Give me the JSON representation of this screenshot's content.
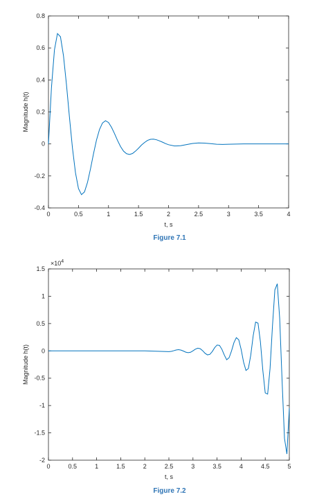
{
  "chart_data": [
    {
      "type": "line",
      "caption": "Figure 7.1",
      "xlabel": "t, s",
      "ylabel": "Magnitude h(t)",
      "color": "#0072bd",
      "x": [
        0,
        0.05,
        0.1,
        0.15,
        0.2,
        0.25,
        0.3,
        0.35,
        0.4,
        0.45,
        0.5,
        0.55,
        0.6,
        0.65,
        0.7,
        0.75,
        0.8,
        0.85,
        0.9,
        0.95,
        1,
        1.05,
        1.1,
        1.15,
        1.2,
        1.25,
        1.3,
        1.35,
        1.4,
        1.45,
        1.5,
        1.55,
        1.6,
        1.65,
        1.7,
        1.75,
        1.8,
        1.85,
        1.9,
        1.95,
        2,
        2.1,
        2.2,
        2.3,
        2.4,
        2.5,
        2.6,
        2.7,
        2.8,
        2.9,
        3,
        3.25,
        3.5,
        3.75,
        4
      ],
      "values": [
        0,
        0.352,
        0.588,
        0.69,
        0.67,
        0.552,
        0.371,
        0.166,
        -0.026,
        -0.18,
        -0.279,
        -0.317,
        -0.3,
        -0.241,
        -0.156,
        -0.062,
        0.024,
        0.09,
        0.131,
        0.145,
        0.134,
        0.104,
        0.065,
        0.022,
        -0.016,
        -0.045,
        -0.061,
        -0.066,
        -0.06,
        -0.045,
        -0.027,
        -0.007,
        0.009,
        0.022,
        0.029,
        0.03,
        0.026,
        0.019,
        0.011,
        0.002,
        -0.005,
        -0.013,
        -0.011,
        -0.004,
        0.003,
        0.006,
        0.005,
        0.002,
        -0.002,
        -0.003,
        -0.002,
        0,
        0,
        0,
        0
      ],
      "xlim": [
        0,
        4
      ],
      "xticks": [
        0,
        0.5,
        1,
        1.5,
        2,
        2.5,
        3,
        3.5,
        4
      ],
      "ylim": [
        -0.4,
        0.8
      ],
      "yticks": [
        -0.4,
        -0.2,
        0,
        0.2,
        0.4,
        0.6,
        0.8
      ],
      "grid": false
    },
    {
      "type": "line",
      "caption": "Figure 7.2",
      "xlabel": "t, s",
      "ylabel": "Magnitude h(t)",
      "y_multiplier": {
        "base": "×10",
        "power": "4"
      },
      "color": "#0072bd",
      "x": [
        0,
        1,
        2,
        2.5,
        2.55,
        2.6,
        2.65,
        2.7,
        2.75,
        2.8,
        2.85,
        2.9,
        2.95,
        3,
        3.05,
        3.1,
        3.15,
        3.2,
        3.25,
        3.3,
        3.35,
        3.4,
        3.45,
        3.5,
        3.55,
        3.6,
        3.65,
        3.7,
        3.75,
        3.8,
        3.85,
        3.9,
        3.95,
        4,
        4.05,
        4.1,
        4.15,
        4.2,
        4.25,
        4.3,
        4.35,
        4.4,
        4.45,
        4.5,
        4.55,
        4.6,
        4.65,
        4.7,
        4.75,
        4.8,
        4.85,
        4.9,
        4.95,
        5
      ],
      "values": [
        0,
        0,
        0,
        -0.014,
        -0.009,
        0.003,
        0.016,
        0.022,
        0.015,
        -0.003,
        -0.023,
        -0.033,
        -0.025,
        0.001,
        0.031,
        0.049,
        0.04,
        0.004,
        -0.043,
        -0.073,
        -0.064,
        -0.013,
        0.058,
        0.107,
        0.101,
        0.03,
        -0.075,
        -0.162,
        -0.125,
        -0.002,
        0.15,
        0.242,
        0.203,
        0.027,
        -0.204,
        -0.358,
        -0.323,
        -0.076,
        0.277,
        0.527,
        0.508,
        0.166,
        -0.355,
        -0.769,
        -0.791,
        -0.324,
        0.451,
        1.116,
        1.228,
        0.595,
        -0.55,
        -1.603,
        -1.887,
        -1.047
      ],
      "xlim": [
        0,
        5
      ],
      "xticks": [
        0,
        0.5,
        1,
        1.5,
        2,
        2.5,
        3,
        3.5,
        4,
        4.5,
        5
      ],
      "ylim": [
        -2,
        1.5
      ],
      "yticks": [
        -2,
        -1.5,
        -1,
        -0.5,
        0,
        0.5,
        1,
        1.5
      ],
      "grid": false
    }
  ]
}
